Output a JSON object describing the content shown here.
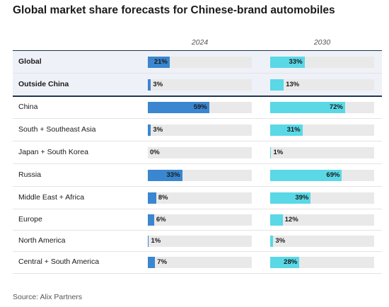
{
  "title": "Global market share forecasts for Chinese-brand automobiles",
  "source": "Source: Alix Partners",
  "chart_data": {
    "type": "bar",
    "orientation": "horizontal",
    "title": "Global market share forecasts for Chinese-brand automobiles",
    "categories": [
      "Global",
      "Outside China",
      "China",
      "South + Southeast Asia",
      "Japan + South Korea",
      "Russia",
      "Middle East + Africa",
      "Europe",
      "North America",
      "Central + South America"
    ],
    "series": [
      {
        "name": "2024",
        "values": [
          21,
          3,
          59,
          3,
          0,
          33,
          8,
          6,
          1,
          7
        ],
        "labels": [
          "21%",
          "3%",
          "59%",
          "3%",
          "0%",
          "33%",
          "8%",
          "6%",
          "1%",
          "7%"
        ],
        "color": "#3a86d0"
      },
      {
        "name": "2030",
        "values": [
          33,
          13,
          72,
          31,
          1,
          69,
          39,
          12,
          3,
          28
        ],
        "labels": [
          "33%",
          "13%",
          "72%",
          "31%",
          "1%",
          "69%",
          "39%",
          "12%",
          "3%",
          "28%"
        ],
        "color": "#5ad8e6"
      }
    ],
    "xlim": [
      0,
      100
    ],
    "highlighted_rows": [
      "Global",
      "Outside China"
    ]
  }
}
